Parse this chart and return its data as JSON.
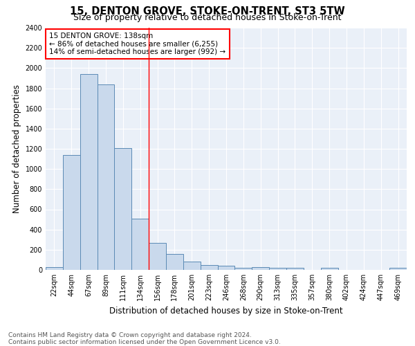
{
  "title": "15, DENTON GROVE, STOKE-ON-TRENT, ST3 5TW",
  "subtitle": "Size of property relative to detached houses in Stoke-on-Trent",
  "xlabel": "Distribution of detached houses by size in Stoke-on-Trent",
  "ylabel": "Number of detached properties",
  "bar_labels": [
    "22sqm",
    "44sqm",
    "67sqm",
    "89sqm",
    "111sqm",
    "134sqm",
    "156sqm",
    "178sqm",
    "201sqm",
    "223sqm",
    "246sqm",
    "268sqm",
    "290sqm",
    "313sqm",
    "335sqm",
    "357sqm",
    "380sqm",
    "402sqm",
    "424sqm",
    "447sqm",
    "469sqm"
  ],
  "bar_values": [
    30,
    1140,
    1940,
    1840,
    1210,
    510,
    270,
    155,
    85,
    45,
    40,
    20,
    25,
    20,
    20,
    0,
    20,
    0,
    0,
    0,
    20
  ],
  "bar_color": "#c9d9ec",
  "bar_edge_color": "#5b8ab5",
  "vline_x": 5.5,
  "vline_color": "red",
  "annotation_text": "15 DENTON GROVE: 138sqm\n← 86% of detached houses are smaller (6,255)\n14% of semi-detached houses are larger (992) →",
  "annotation_box_color": "white",
  "annotation_box_edge": "red",
  "ylim": [
    0,
    2400
  ],
  "yticks": [
    0,
    200,
    400,
    600,
    800,
    1000,
    1200,
    1400,
    1600,
    1800,
    2000,
    2200,
    2400
  ],
  "footnote": "Contains HM Land Registry data © Crown copyright and database right 2024.\nContains public sector information licensed under the Open Government Licence v3.0.",
  "bg_color": "#eaf0f8",
  "fig_bg_color": "#ffffff",
  "title_fontsize": 10.5,
  "subtitle_fontsize": 9,
  "xlabel_fontsize": 8.5,
  "ylabel_fontsize": 8.5,
  "tick_fontsize": 7,
  "annotation_fontsize": 7.5,
  "footnote_fontsize": 6.5
}
